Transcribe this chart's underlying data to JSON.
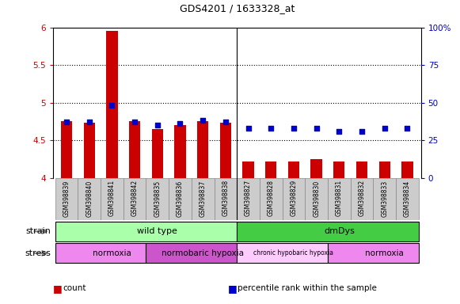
{
  "title": "GDS4201 / 1633328_at",
  "samples": [
    "GSM398839",
    "GSM398840",
    "GSM398841",
    "GSM398842",
    "GSM398835",
    "GSM398836",
    "GSM398837",
    "GSM398838",
    "GSM398827",
    "GSM398828",
    "GSM398829",
    "GSM398830",
    "GSM398831",
    "GSM398832",
    "GSM398833",
    "GSM398834"
  ],
  "count_values": [
    4.75,
    4.73,
    5.95,
    4.75,
    4.65,
    4.7,
    4.75,
    4.73,
    4.22,
    4.22,
    4.22,
    4.25,
    4.22,
    4.22,
    4.22,
    4.22
  ],
  "percentile_values": [
    37,
    37,
    48,
    37,
    35,
    36,
    38,
    37,
    33,
    33,
    33,
    33,
    31,
    31,
    33,
    33
  ],
  "ylim_left": [
    4.0,
    6.0
  ],
  "ylim_right": [
    0,
    100
  ],
  "yticks_left": [
    4.0,
    4.5,
    5.0,
    5.5,
    6.0
  ],
  "ytick_labels_left": [
    "4",
    "4.5",
    "5",
    "5.5",
    "6"
  ],
  "yticks_right": [
    0,
    25,
    50,
    75,
    100
  ],
  "ytick_labels_right": [
    "0",
    "25",
    "50",
    "75",
    "100%"
  ],
  "hlines": [
    4.5,
    5.0,
    5.5
  ],
  "bar_color": "#cc0000",
  "dot_color": "#0000cc",
  "bar_width": 0.5,
  "dot_size": 18,
  "group_separator": 7.5,
  "strain_groups": [
    {
      "label": "wild type",
      "start": 0,
      "end": 8,
      "color": "#aaffaa"
    },
    {
      "label": "dmDys",
      "start": 8,
      "end": 16,
      "color": "#44cc44"
    }
  ],
  "stress_groups": [
    {
      "label": "normoxia",
      "start": 0,
      "end": 4,
      "color": "#ee88ee"
    },
    {
      "label": "normobaric hypoxia",
      "start": 4,
      "end": 8,
      "color": "#cc55cc"
    },
    {
      "label": "chronic hypobaric hypoxia",
      "start": 8,
      "end": 12,
      "color": "#ffccff"
    },
    {
      "label": "normoxia",
      "start": 12,
      "end": 16,
      "color": "#ee88ee"
    }
  ],
  "legend_items": [
    {
      "label": "count",
      "color": "#cc0000"
    },
    {
      "label": "percentile rank within the sample",
      "color": "#0000cc"
    }
  ],
  "strain_label": "strain",
  "stress_label": "stress",
  "bg_color": "#ffffff",
  "tick_color_left": "#cc0000",
  "tick_color_right": "#0000cc",
  "xtick_bg_color": "#cccccc",
  "xtick_border_color": "#888888"
}
